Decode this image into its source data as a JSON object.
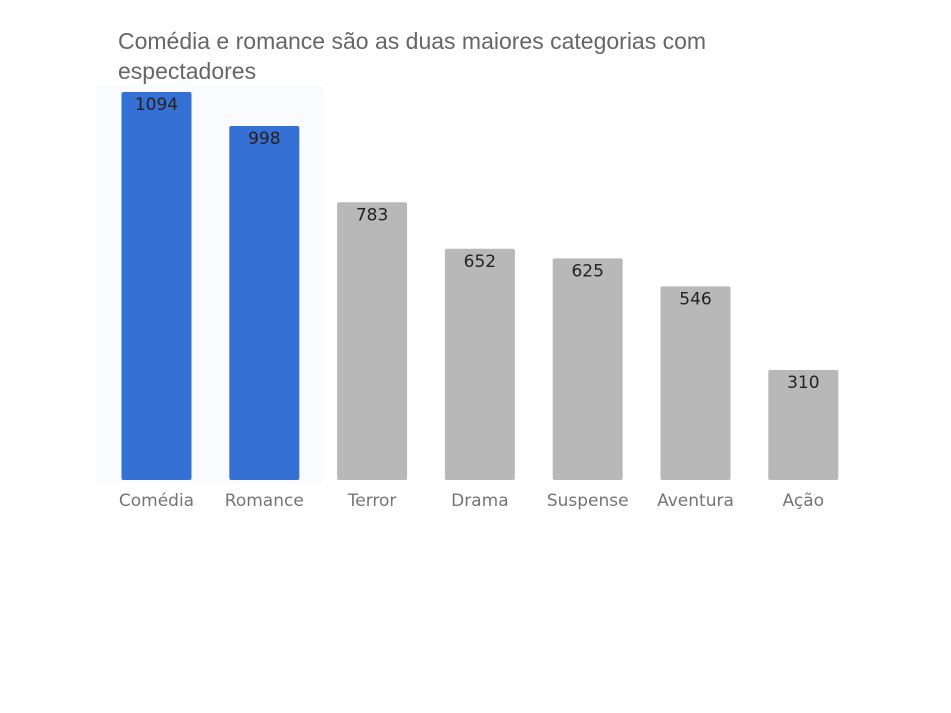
{
  "chart_data": {
    "type": "bar",
    "title": "Comédia e romance são as duas maiores categorias com espectadores",
    "xlabel": "",
    "ylabel": "",
    "categories": [
      "Comédia",
      "Romance",
      "Terror",
      "Drama",
      "Suspense",
      "Aventura",
      "Ação"
    ],
    "values": [
      1094,
      998,
      783,
      652,
      625,
      546,
      310
    ],
    "highlighted": [
      true,
      true,
      false,
      false,
      false,
      false,
      false
    ],
    "ylim": [
      0,
      1094
    ],
    "grid": false,
    "legend": "none",
    "colors": {
      "highlight": "#3570d4",
      "default": "#b8b8b8",
      "highlight_panel": "#f9fbfe",
      "title": "#666666",
      "value_label": "#222222",
      "category_label": "#757575"
    }
  }
}
